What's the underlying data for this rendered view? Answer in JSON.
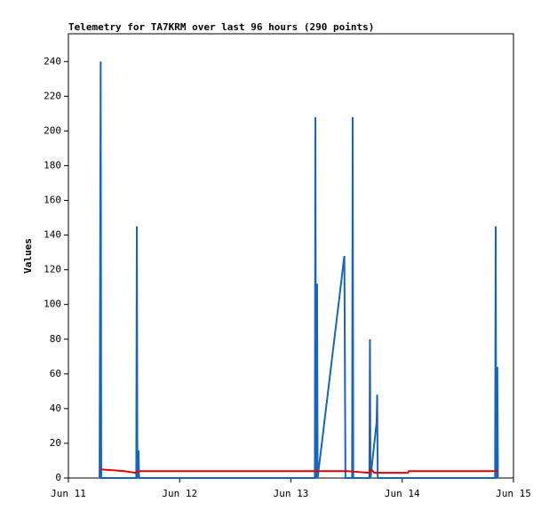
{
  "chart_data": {
    "type": "line",
    "title": "Telemetry for TA7KRM over last 96 hours (290 points)",
    "y_label": "Values",
    "xlim": [
      11,
      15
    ],
    "xticks": [
      {
        "value": 11,
        "label": "Jun 11"
      },
      {
        "value": 12,
        "label": "Jun 12"
      },
      {
        "value": 13,
        "label": "Jun 13"
      },
      {
        "value": 14,
        "label": "Jun 14"
      },
      {
        "value": 15,
        "label": "Jun 15"
      }
    ],
    "ylim": [
      0,
      256
    ],
    "yticks": [
      0,
      20,
      40,
      60,
      80,
      100,
      120,
      140,
      160,
      180,
      200,
      220,
      240
    ],
    "series": [
      {
        "color": "#1565c0",
        "x": [
          11.28,
          11.285,
          11.29,
          11.295,
          11.61,
          11.615,
          11.62,
          11.63,
          11.635,
          13.215,
          13.22,
          13.225,
          13.235,
          13.24,
          13.48,
          13.485,
          13.49,
          13.55,
          13.555,
          13.56,
          13.705,
          13.71,
          13.715,
          13.77,
          13.775,
          13.78,
          14.835,
          14.84,
          14.845,
          14.855,
          14.86
        ],
        "values": [
          0,
          112,
          240,
          0,
          0,
          145,
          0,
          16,
          0,
          0,
          208,
          0,
          112,
          0,
          128,
          64,
          0,
          0,
          208,
          0,
          0,
          80,
          0,
          32,
          48,
          0,
          0,
          145,
          0,
          64,
          0
        ]
      },
      {
        "color": "#e00000",
        "x": [
          11.29,
          11.5,
          11.6,
          11.63,
          12.5,
          13.22,
          13.5,
          13.7,
          13.72,
          13.75,
          13.8,
          14.0,
          14.05,
          14.06,
          14.5,
          14.86
        ],
        "values": [
          5,
          4,
          3,
          4,
          4,
          4,
          4,
          3,
          5,
          3,
          3,
          3,
          3,
          4,
          4,
          4
        ]
      }
    ]
  }
}
